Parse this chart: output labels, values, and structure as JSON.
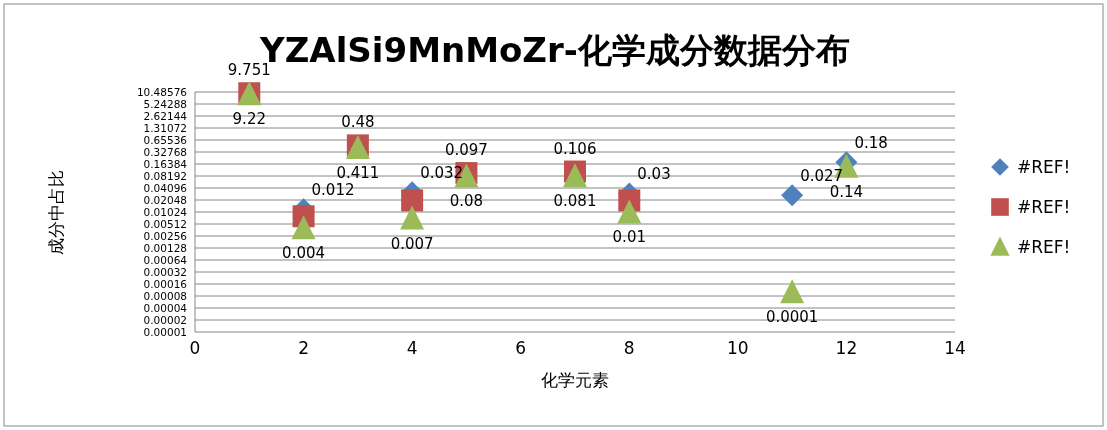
{
  "chart_data": {
    "type": "scatter",
    "title": "YZAlSi9MnMoZr-化学成分数据分布",
    "xlabel": "化学元素",
    "ylabel": "成分中占比",
    "xlim": [
      0,
      14
    ],
    "xticks": [
      0,
      2,
      4,
      6,
      8,
      10,
      12,
      14
    ],
    "ylim": [
      1e-05,
      10.48576
    ],
    "yticks": [
      {
        "value": 1e-05,
        "label": "0.00001"
      },
      {
        "value": 2e-05,
        "label": "0.00002"
      },
      {
        "value": 4e-05,
        "label": "0.00004"
      },
      {
        "value": 8e-05,
        "label": "0.00008"
      },
      0.00016,
      0.00032,
      0.00064,
      0.00128,
      0.00256,
      0.00512,
      0.01024,
      0.02048,
      0.04096,
      0.08192,
      0.16384,
      0.32768,
      0.65536,
      1.31072,
      2.62144,
      5.24288,
      10.48576
    ],
    "log": "y",
    "grid": "y",
    "legend": "right",
    "series": [
      {
        "name": "#REF!",
        "color": "#4f81bd",
        "marker": "diamond",
        "x": [
          2,
          4,
          8,
          11,
          12
        ],
        "values": [
          0.012,
          0.032,
          0.03,
          0.027,
          0.18
        ],
        "value_labels": [
          "0.012",
          "0.032",
          "0.03",
          "0.027",
          "0.18"
        ]
      },
      {
        "name": "#REF!",
        "color": "#c0504d",
        "marker": "square",
        "x": [
          1,
          2,
          3,
          4,
          5,
          7,
          8
        ],
        "values": [
          9.751,
          0.008,
          0.48,
          0.02,
          0.097,
          0.106,
          0.02
        ],
        "value_labels": [
          "9.751",
          null,
          "0.48",
          null,
          "0.097",
          "0.106",
          null
        ]
      },
      {
        "name": "#REF!",
        "color": "#9bbb59",
        "marker": "triangle",
        "x": [
          1,
          2,
          3,
          4,
          5,
          7,
          8,
          11,
          12
        ],
        "values": [
          9.22,
          0.004,
          0.411,
          0.007,
          0.08,
          0.081,
          0.01,
          0.0001,
          0.14
        ],
        "value_labels": [
          "9.22",
          "0.004",
          "0.411",
          "0.007",
          "0.08",
          "0.081",
          "0.01",
          "0.0001",
          "0.14"
        ]
      }
    ]
  }
}
